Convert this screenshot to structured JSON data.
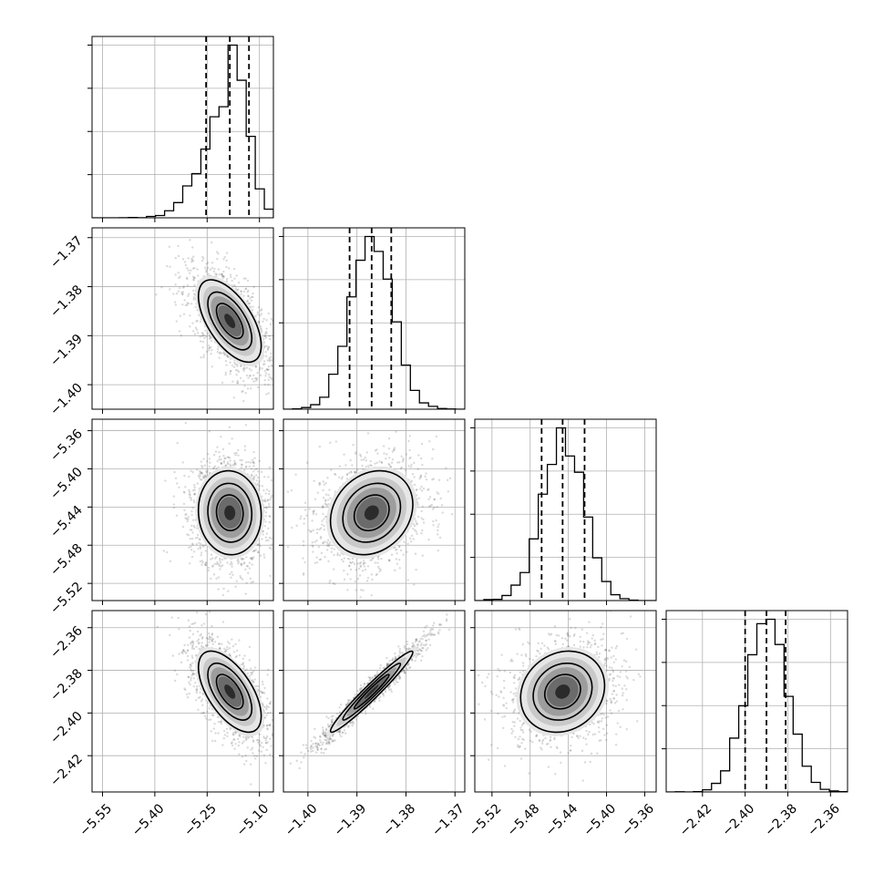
{
  "chart_data": {
    "type": "corner",
    "title": "",
    "parameters": [
      {
        "name": "",
        "range": [
          -5.58,
          -5.06
        ],
        "ticks": [
          -5.55,
          -5.4,
          -5.25,
          -5.1
        ],
        "tick_labels": [
          "−5.55",
          "−5.40",
          "−5.25",
          "−5.10"
        ],
        "quantiles": [
          -5.253,
          -5.185,
          -5.13
        ],
        "median": -5.185,
        "sd": 0.045
      },
      {
        "name": "",
        "range": [
          -1.405,
          -1.368
        ],
        "ticks": [
          -1.4,
          -1.39,
          -1.38,
          -1.37
        ],
        "tick_labels": [
          "−1.40",
          "−1.39",
          "−1.38",
          "−1.37"
        ],
        "quantiles": [
          -1.3915,
          -1.387,
          -1.383
        ],
        "median": -1.387,
        "sd": 0.0042
      },
      {
        "name": "",
        "range": [
          -5.538,
          -5.348
        ],
        "ticks": [
          -5.52,
          -5.48,
          -5.44,
          -5.4,
          -5.36
        ],
        "tick_labels": [
          "−5.52",
          "−5.48",
          "−5.44",
          "−5.40",
          "−5.36"
        ],
        "quantiles": [
          -5.468,
          -5.446,
          -5.423
        ],
        "median": -5.446,
        "sd": 0.022
      },
      {
        "name": "",
        "range": [
          -2.437,
          -2.352
        ],
        "ticks": [
          -2.42,
          -2.4,
          -2.38,
          -2.36
        ],
        "tick_labels": [
          "−2.42",
          "−2.40",
          "−2.38",
          "−2.36"
        ],
        "quantiles": [
          -2.4,
          -2.39,
          -2.381
        ],
        "median": -2.39,
        "sd": 0.0095
      }
    ],
    "correlations": {
      "1-0": -0.6,
      "2-0": -0.05,
      "2-1": 0.2,
      "3-0": -0.6,
      "3-1": 0.97,
      "3-2": 0.15
    },
    "grid": true,
    "colors": {
      "contour": "#000000",
      "sample": "#555555",
      "hist": "#000000",
      "grid": "#b0b0b0"
    }
  }
}
